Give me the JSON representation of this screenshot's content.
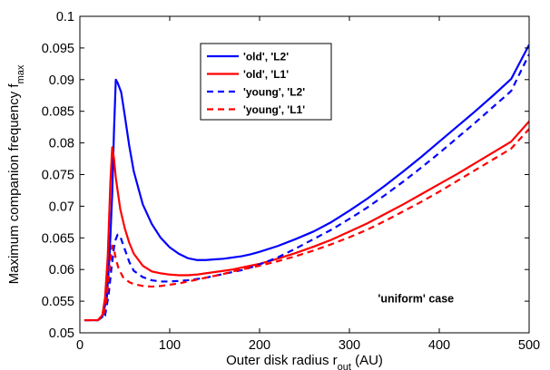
{
  "chart_data": {
    "type": "line",
    "title": "",
    "xlabel": "Outer disk radius r",
    "xlabel_sub": "out",
    "xlabel_suffix": " (AU)",
    "ylabel": "Maximum companion frequency f",
    "ylabel_sub": "max",
    "xlim": [
      0,
      500
    ],
    "ylim": [
      0.05,
      0.1
    ],
    "xticks": [
      0,
      100,
      200,
      300,
      400,
      500
    ],
    "xtick_labels": [
      "0",
      "100",
      "200",
      "300",
      "400",
      "500"
    ],
    "yticks": [
      0.05,
      0.055,
      0.06,
      0.065,
      0.07,
      0.075,
      0.08,
      0.085,
      0.09,
      0.095,
      0.1
    ],
    "ytick_labels": [
      "0.05",
      "0.055",
      "0.06",
      "0.065",
      "0.07",
      "0.075",
      "0.08",
      "0.085",
      "0.09",
      "0.095",
      "0.1"
    ],
    "grid": false,
    "legend_position": "top-center",
    "annotation": "'uniform' case",
    "series": [
      {
        "name": "'old', 'L2'",
        "color": "#0000ff",
        "dash": "solid",
        "x": [
          5,
          20,
          25,
          30,
          33,
          36,
          38,
          40,
          42,
          46,
          50,
          55,
          60,
          70,
          80,
          90,
          100,
          110,
          120,
          130,
          140,
          150,
          160,
          170,
          180,
          190,
          200,
          220,
          240,
          260,
          280,
          300,
          320,
          340,
          360,
          380,
          400,
          420,
          440,
          460,
          480,
          500
        ],
        "y": [
          0.052,
          0.052,
          0.0525,
          0.0555,
          0.062,
          0.072,
          0.082,
          0.09,
          0.0895,
          0.088,
          0.0843,
          0.0795,
          0.0755,
          0.0703,
          0.0672,
          0.065,
          0.0635,
          0.0625,
          0.0618,
          0.0615,
          0.0615,
          0.0616,
          0.0617,
          0.0619,
          0.0621,
          0.0624,
          0.0628,
          0.0637,
          0.0648,
          0.066,
          0.0675,
          0.0693,
          0.0712,
          0.0733,
          0.0755,
          0.0778,
          0.0802,
          0.0826,
          0.085,
          0.0875,
          0.0901,
          0.0955
        ]
      },
      {
        "name": "'old', 'L1'",
        "color": "#ff0000",
        "dash": "solid",
        "x": [
          5,
          20,
          25,
          28,
          31,
          34,
          36,
          38,
          40,
          45,
          50,
          55,
          60,
          70,
          80,
          90,
          100,
          110,
          120,
          130,
          140,
          150,
          160,
          170,
          180,
          190,
          200,
          220,
          240,
          260,
          280,
          300,
          320,
          340,
          360,
          380,
          400,
          420,
          440,
          460,
          480,
          500
        ],
        "y": [
          0.052,
          0.052,
          0.0528,
          0.0555,
          0.062,
          0.074,
          0.0793,
          0.0775,
          0.0745,
          0.0695,
          0.0665,
          0.0642,
          0.0625,
          0.0606,
          0.0597,
          0.0594,
          0.0592,
          0.0591,
          0.0591,
          0.0592,
          0.0594,
          0.0596,
          0.0598,
          0.06,
          0.0603,
          0.0606,
          0.0609,
          0.0617,
          0.0626,
          0.0636,
          0.0647,
          0.066,
          0.0673,
          0.0688,
          0.0703,
          0.0719,
          0.0735,
          0.0751,
          0.0768,
          0.0785,
          0.0802,
          0.0834
        ]
      },
      {
        "name": "'young', 'L2'",
        "color": "#0000ff",
        "dash": "dashed",
        "x": [
          5,
          20,
          28,
          32,
          35,
          38,
          40,
          42,
          45,
          50,
          55,
          60,
          70,
          80,
          90,
          100,
          110,
          120,
          130,
          140,
          150,
          160,
          170,
          180,
          190,
          200,
          220,
          240,
          260,
          280,
          300,
          320,
          340,
          360,
          380,
          400,
          420,
          440,
          460,
          480,
          500
        ],
        "y": [
          0.052,
          0.052,
          0.0527,
          0.056,
          0.06,
          0.0635,
          0.0648,
          0.0655,
          0.0652,
          0.0632,
          0.0612,
          0.0598,
          0.0588,
          0.0583,
          0.0581,
          0.0581,
          0.0582,
          0.0583,
          0.0585,
          0.0587,
          0.059,
          0.0593,
          0.0596,
          0.0599,
          0.0603,
          0.0608,
          0.0619,
          0.0633,
          0.0648,
          0.0663,
          0.068,
          0.0698,
          0.0718,
          0.0739,
          0.0761,
          0.0784,
          0.0808,
          0.0832,
          0.0857,
          0.0882,
          0.094
        ]
      },
      {
        "name": "'young', 'L1'",
        "color": "#ff0000",
        "dash": "dashed",
        "x": [
          5,
          20,
          26,
          30,
          33,
          36,
          38,
          40,
          43,
          48,
          55,
          60,
          70,
          80,
          90,
          100,
          110,
          120,
          130,
          140,
          150,
          160,
          170,
          180,
          190,
          200,
          220,
          240,
          260,
          280,
          300,
          320,
          340,
          360,
          380,
          400,
          420,
          440,
          460,
          480,
          500
        ],
        "y": [
          0.052,
          0.052,
          0.0527,
          0.0555,
          0.0603,
          0.0638,
          0.0632,
          0.0617,
          0.0602,
          0.0588,
          0.058,
          0.0577,
          0.0574,
          0.0573,
          0.0574,
          0.0576,
          0.0578,
          0.0581,
          0.0584,
          0.0587,
          0.059,
          0.0593,
          0.0597,
          0.06,
          0.0603,
          0.0606,
          0.0613,
          0.0621,
          0.063,
          0.064,
          0.0651,
          0.0663,
          0.0677,
          0.0692,
          0.0707,
          0.0723,
          0.074,
          0.0757,
          0.0774,
          0.0791,
          0.0822
        ]
      }
    ]
  }
}
